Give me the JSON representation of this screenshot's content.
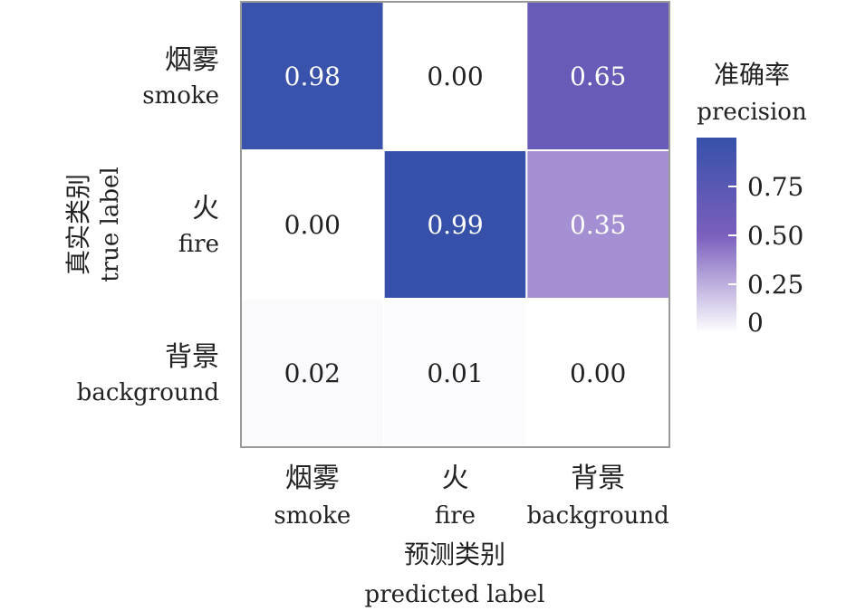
{
  "chart_data": {
    "type": "heatmap",
    "title": "",
    "rows": [
      {
        "zh": "烟雾",
        "en": "smoke"
      },
      {
        "zh": "火",
        "en": "fire"
      },
      {
        "zh": "背景",
        "en": "background"
      }
    ],
    "columns": [
      {
        "zh": "烟雾",
        "en": "smoke"
      },
      {
        "zh": "火",
        "en": "fire"
      },
      {
        "zh": "背景",
        "en": "background"
      }
    ],
    "values": [
      [
        0.98,
        0.0,
        0.65
      ],
      [
        0.0,
        0.99,
        0.35
      ],
      [
        0.02,
        0.01,
        0.0
      ]
    ],
    "value_labels": [
      [
        "0.98",
        "0.00",
        "0.65"
      ],
      [
        "0.00",
        "0.99",
        "0.35"
      ],
      [
        "0.02",
        "0.01",
        "0.00"
      ]
    ],
    "xlabel_zh": "预测类别",
    "xlabel_en": "predicted label",
    "ylabel_zh": "真实类别",
    "ylabel_en": "true label",
    "colorbar": {
      "title_zh": "准确率",
      "title_en": "precision",
      "range": [
        0,
        1
      ],
      "ticks": [
        0.75,
        0.5,
        0.25,
        0
      ],
      "tick_labels": [
        "0.75",
        "0.50",
        "0.25",
        "0"
      ]
    },
    "colors": {
      "low": "#ffffff",
      "mid": "#7b5fbd",
      "high": "#3651aa",
      "grid_border": "#999999",
      "text_dark": "#222222",
      "text_light": "#ffffff"
    }
  }
}
